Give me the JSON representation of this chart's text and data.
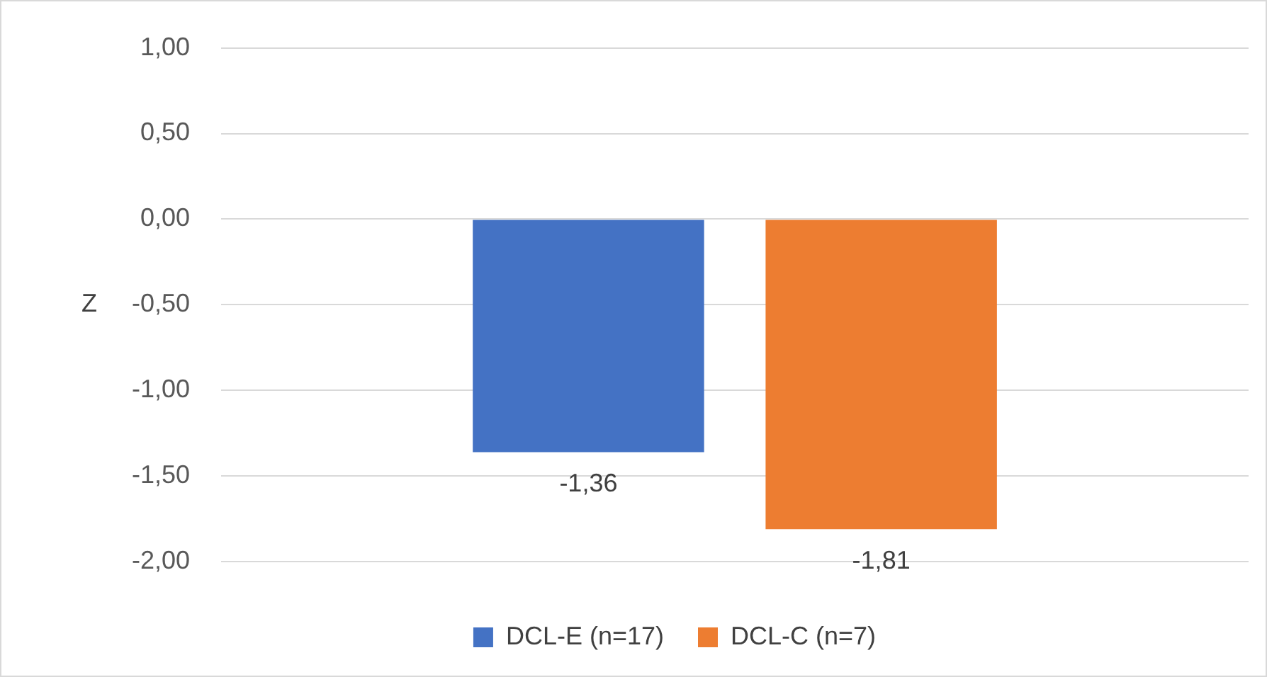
{
  "chart_data": {
    "type": "bar",
    "ylabel": "Z",
    "categories": [
      null
    ],
    "series": [
      {
        "name": "DCL-E (n=17)",
        "color": "#4472c4",
        "values": [
          -1.36
        ],
        "value_labels": [
          "-1,36"
        ]
      },
      {
        "name": "DCL-C (n=7)",
        "color": "#ed7d31",
        "values": [
          -1.81
        ],
        "value_labels": [
          "-1,81"
        ]
      }
    ],
    "ylim": [
      -2,
      1
    ],
    "yticks": [
      {
        "value": -2,
        "label": "-2,00"
      },
      {
        "value": -1.5,
        "label": "-1,50"
      },
      {
        "value": -1,
        "label": "-1,00"
      },
      {
        "value": -0.5,
        "label": "-0,50"
      },
      {
        "value": 0,
        "label": "0,00"
      },
      {
        "value": 0.5,
        "label": "0,50"
      },
      {
        "value": 1,
        "label": "1,00"
      }
    ],
    "grid": "y",
    "legend": "bottom"
  }
}
